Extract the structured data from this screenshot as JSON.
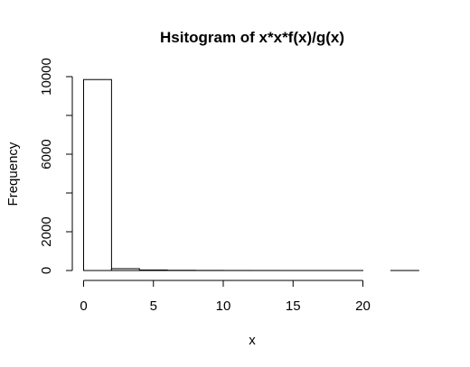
{
  "chart_data": {
    "type": "bar",
    "title": "Hsitogram of x*x*f(x)/g(x)",
    "xlabel": "x",
    "ylabel": "Frequency",
    "bin_edges": [
      0,
      2,
      4,
      6,
      8,
      10,
      12,
      14,
      16,
      18,
      20,
      22,
      24
    ],
    "values": [
      9850,
      95,
      28,
      12,
      6,
      3,
      2,
      1,
      1,
      1,
      0,
      1
    ],
    "xlim": [
      0,
      24
    ],
    "ylim": [
      0,
      10000
    ],
    "x_ticks": [
      0,
      5,
      10,
      15,
      20
    ],
    "y_ticks": [
      0,
      2000,
      6000,
      10000
    ],
    "y_ticks_marks": [
      0,
      2000,
      4000,
      6000,
      8000,
      10000
    ],
    "grid": false,
    "colors": {
      "bar_fill": "#ffffff",
      "bar_stroke": "#000000"
    }
  }
}
